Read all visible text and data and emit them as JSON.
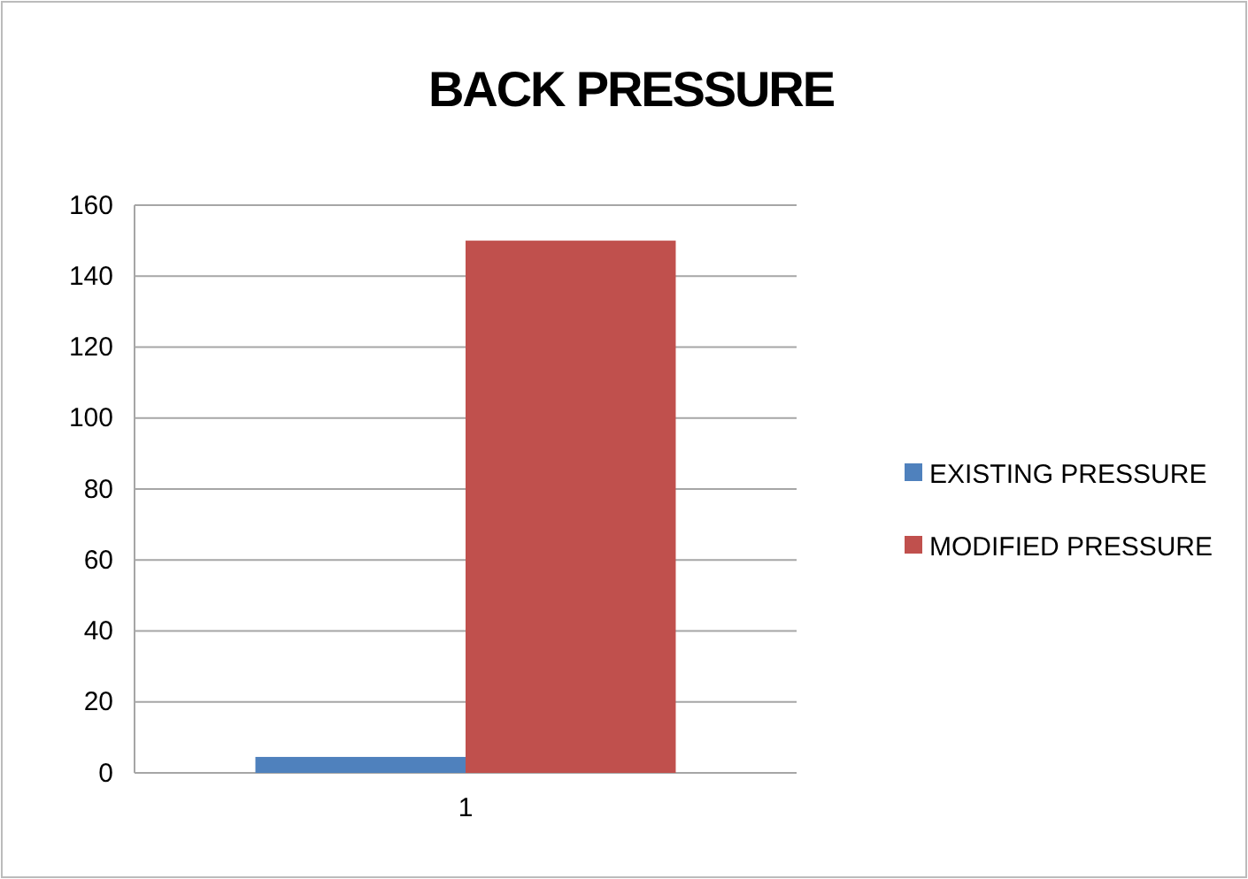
{
  "chart_data": {
    "type": "bar",
    "title": "BACK PRESSURE",
    "categories": [
      "1"
    ],
    "series": [
      {
        "name": "EXISTING PRESSURE",
        "color": "#4f81bd",
        "values": [
          4.5
        ]
      },
      {
        "name": "MODIFIED PRESSURE",
        "color": "#c0504d",
        "values": [
          150
        ]
      }
    ],
    "ylim": [
      0,
      160
    ],
    "yticks": [
      0,
      20,
      40,
      60,
      80,
      100,
      120,
      140,
      160
    ],
    "grid": "y",
    "legend": "right"
  }
}
